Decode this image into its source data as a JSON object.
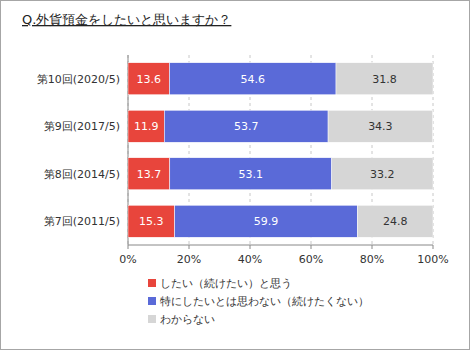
{
  "chart_data": {
    "type": "bar",
    "title": "Q.外貨預金をしたいと思いますか？",
    "orientation": "horizontal",
    "stacked": true,
    "data_labels": true,
    "grid": true,
    "legend": "bottom",
    "categories": [
      "第10回(2020/5)",
      "第9回(2017/5)",
      "第8回(2014/5)",
      "第7回(2011/5)"
    ],
    "series": [
      {
        "name": "したい（続けたい）と思う",
        "color": "#e8453c",
        "values": [
          13.6,
          11.9,
          13.7,
          15.3
        ]
      },
      {
        "name": "特にしたいとは思わない（続けたくない）",
        "color": "#5a6ad8",
        "values": [
          54.6,
          53.7,
          53.1,
          59.9
        ]
      },
      {
        "name": "わからない",
        "color": "#d6d6d6",
        "values": [
          31.8,
          34.3,
          33.2,
          24.8
        ]
      }
    ],
    "xlim": [
      0,
      100
    ],
    "xticks": [
      {
        "value": 0,
        "label": "0%"
      },
      {
        "value": 20,
        "label": "20%"
      },
      {
        "value": 40,
        "label": "40%"
      },
      {
        "value": 60,
        "label": "60%"
      },
      {
        "value": 80,
        "label": "80%"
      },
      {
        "value": 100,
        "label": "100%"
      }
    ]
  }
}
